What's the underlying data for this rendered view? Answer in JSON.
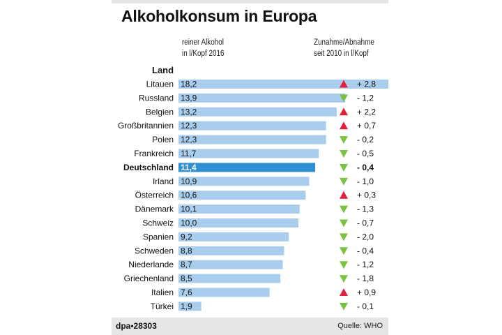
{
  "title": "Alkoholkonsum in Europa",
  "column_headers": {
    "alcohol_line1": "reiner Alkohol",
    "alcohol_line2": "in l/Kopf 2016",
    "change_line1": "Zunahme/Abnahme",
    "change_line2": "seit 2010 in l/Kopf"
  },
  "row_header": "Land",
  "footer": {
    "credit": "dpa•28303",
    "source": "Quelle: WHO"
  },
  "colors": {
    "bar": "#a9cdec",
    "bar_highlight": "#2f8fd3",
    "up_arrow": "#e2203c",
    "down_arrow": "#7cc242"
  },
  "chart_data": {
    "type": "bar",
    "orientation": "horizontal",
    "highlight": "Deutschland",
    "categories": [
      "Litauen",
      "Russland",
      "Belgien",
      "Großbritannien",
      "Polen",
      "Frankreich",
      "Deutschland",
      "Irland",
      "Österreich",
      "Dänemark",
      "Schweiz",
      "Spanien",
      "Schweden",
      "Niederlande",
      "Griechenland",
      "Italien",
      "Türkei"
    ],
    "values": [
      18.2,
      13.9,
      13.2,
      12.3,
      12.3,
      11.7,
      11.4,
      10.9,
      10.6,
      10.1,
      10.0,
      9.2,
      8.8,
      8.7,
      8.5,
      7.6,
      1.9
    ],
    "value_labels": [
      "18,2",
      "13,9",
      "13,2",
      "12,3",
      "12,3",
      "11,7",
      "11,4",
      "10,9",
      "10,6",
      "10,1",
      "10,0",
      "9,2",
      "8,8",
      "8,7",
      "8,5",
      "7,6",
      "1,9"
    ],
    "change": [
      2.8,
      -1.2,
      2.2,
      0.7,
      -0.2,
      -0.5,
      -0.4,
      -1.0,
      0.3,
      -1.3,
      -0.7,
      -2.0,
      -0.4,
      -1.2,
      -1.8,
      0.9,
      -0.1
    ],
    "change_labels": [
      "+ 2,8",
      "- 1,2",
      "+ 2,2",
      "+ 0,7",
      "- 0,2",
      "- 0,5",
      "- 0,4",
      "- 1,0",
      "+ 0,3",
      "- 1,3",
      "- 0,7",
      "- 2,0",
      "- 0,4",
      "- 1,2",
      "- 1,8",
      "+ 0,9",
      "- 0,1"
    ]
  }
}
